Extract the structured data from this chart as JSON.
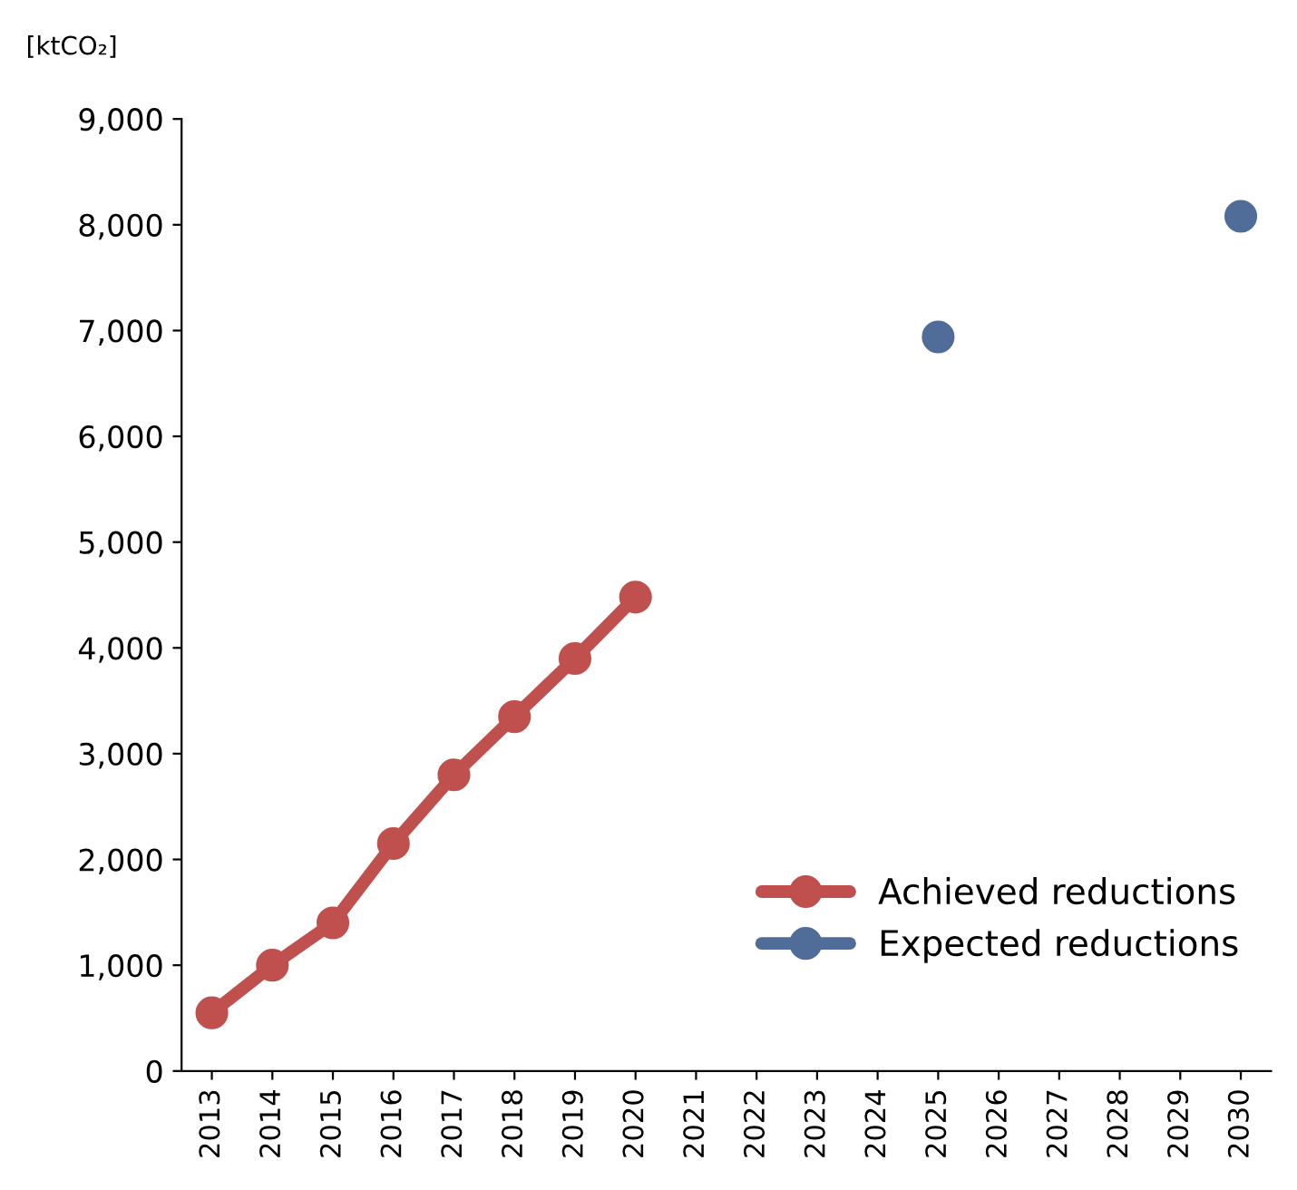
{
  "chart_data": {
    "type": "line",
    "ylabel": "[ktCO₂]",
    "categories": [
      "2013",
      "2014",
      "2015",
      "2016",
      "2017",
      "2018",
      "2019",
      "2020",
      "2021",
      "2022",
      "2023",
      "2024",
      "2025",
      "2026",
      "2027",
      "2028",
      "2029",
      "2030"
    ],
    "series": [
      {
        "name": "Achieved reductions",
        "color": "#c0504d",
        "values": [
          550,
          1000,
          1400,
          2150,
          2800,
          3350,
          3900,
          4480,
          null,
          null,
          null,
          null,
          null,
          null,
          null,
          null,
          null,
          null
        ]
      },
      {
        "name": "Expected reductions",
        "color": "#4f6d98",
        "values": [
          null,
          null,
          null,
          null,
          null,
          null,
          null,
          null,
          null,
          null,
          null,
          null,
          6940,
          null,
          null,
          null,
          null,
          8080
        ]
      }
    ],
    "ylim": [
      0,
      9000
    ],
    "yticks": [
      0,
      {
        "value": 1000,
        "label": "1,000"
      },
      {
        "value": 2000,
        "label": "2,000"
      },
      {
        "value": 3000,
        "label": "3,000"
      },
      {
        "value": 4000,
        "label": "4,000"
      },
      {
        "value": 5000,
        "label": "5,000"
      },
      {
        "value": 6000,
        "label": "6,000"
      },
      {
        "value": 7000,
        "label": "7,000"
      },
      {
        "value": 8000,
        "label": "8,000"
      },
      {
        "value": 9000,
        "label": "9,000"
      }
    ],
    "grid": false,
    "legend": "bottom right",
    "marker": "circle",
    "line_style": "solid"
  }
}
